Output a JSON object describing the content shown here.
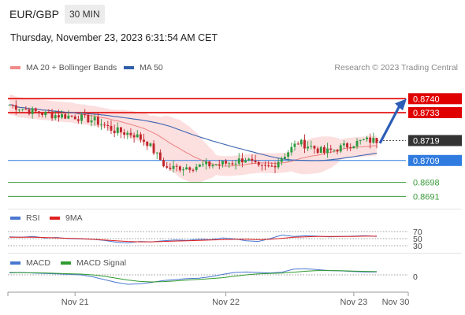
{
  "header": {
    "pair": "EUR/GBP",
    "timeframe": "30 MIN"
  },
  "timestamp": "Thursday, November 23, 2023 6:31:54 AM CET",
  "legends": {
    "price": [
      {
        "label": "MA 20 + Bollinger Bands",
        "color": "#f08a8a"
      },
      {
        "label": "MA 50",
        "color": "#2f5fa8"
      }
    ],
    "rsi": [
      {
        "label": "RSI",
        "color": "#4a78d0"
      },
      {
        "label": "9MA",
        "color": "#e02020"
      }
    ],
    "macd": [
      {
        "label": "MACD",
        "color": "#4a78d0"
      },
      {
        "label": "MACD Signal",
        "color": "#2e9a2e"
      }
    ]
  },
  "credit": "Research © 2023 Trading Central",
  "chart_data": [
    {
      "type": "candlestick",
      "panel": "price",
      "x_labels": [
        "Nov 21",
        "Nov 22",
        "Nov 23",
        "Nov 30"
      ],
      "ylim": [
        0.8686,
        0.875
      ],
      "close_points": [
        [
          0,
          0.8737
        ],
        [
          6,
          0.8734
        ],
        [
          12,
          0.8732
        ],
        [
          20,
          0.8731
        ],
        [
          26,
          0.8729
        ],
        [
          32,
          0.8724
        ],
        [
          38,
          0.8722
        ],
        [
          42,
          0.8718
        ],
        [
          48,
          0.8705
        ],
        [
          56,
          0.8706
        ],
        [
          62,
          0.8707
        ],
        [
          68,
          0.8708
        ],
        [
          72,
          0.871
        ],
        [
          76,
          0.8705
        ],
        [
          80,
          0.8706
        ],
        [
          84,
          0.8712
        ],
        [
          88,
          0.8718
        ],
        [
          92,
          0.8716
        ],
        [
          96,
          0.8713
        ],
        [
          100,
          0.8715
        ],
        [
          104,
          0.8717
        ],
        [
          108,
          0.8719
        ],
        [
          112,
          0.8719
        ]
      ],
      "levels": [
        {
          "value": 0.874,
          "label": "0.8740",
          "role": "resistance",
          "color": "#e00000"
        },
        {
          "value": 0.8733,
          "label": "0.8733",
          "role": "resistance",
          "color": "#e00000"
        },
        {
          "value": 0.8719,
          "label": "0.8719",
          "role": "last",
          "color": "#333333"
        },
        {
          "value": 0.8709,
          "label": "0.8709",
          "role": "pivot",
          "color": "#2f7be0"
        },
        {
          "value": 0.8698,
          "label": "0.8698",
          "role": "support",
          "color": "#3a9a3a"
        },
        {
          "value": 0.8691,
          "label": "0.8691",
          "role": "support",
          "color": "#3a9a3a"
        }
      ],
      "target": 0.874
    },
    {
      "type": "line",
      "panel": "rsi",
      "ylim": [
        30,
        70
      ],
      "ticks": [
        "70",
        "50",
        "30"
      ],
      "series": [
        {
          "name": "RSI",
          "values": [
            55,
            54,
            56,
            52,
            53,
            50,
            49,
            48,
            45,
            40,
            38,
            42,
            41,
            44,
            46,
            45,
            48,
            47,
            52,
            49,
            44,
            42,
            50,
            60,
            56,
            58,
            57,
            55,
            56,
            57,
            58,
            56
          ]
        },
        {
          "name": "9MA",
          "values": [
            54,
            54,
            54,
            53,
            52,
            51,
            50,
            48,
            46,
            44,
            42,
            41,
            41,
            42,
            43,
            44,
            45,
            46,
            47,
            48,
            48,
            47,
            48,
            51,
            54,
            55,
            56,
            56,
            56,
            56,
            57,
            57
          ]
        }
      ]
    },
    {
      "type": "line",
      "panel": "macd",
      "ticks": [
        "0"
      ],
      "series": [
        {
          "name": "MACD",
          "values": [
            0.2,
            0.25,
            0.18,
            0.15,
            0.1,
            0.05,
            0.0,
            -0.2,
            -0.5,
            -0.8,
            -1.0,
            -0.95,
            -0.8,
            -0.6,
            -0.5,
            -0.4,
            -0.35,
            -0.2,
            0.05,
            0.25,
            0.3,
            0.25,
            0.2,
            0.28,
            0.6,
            0.65,
            0.55,
            0.45,
            0.42,
            0.35,
            0.3,
            0.3
          ]
        },
        {
          "name": "MACD Signal",
          "values": [
            0.25,
            0.23,
            0.22,
            0.2,
            0.16,
            0.12,
            0.08,
            0.0,
            -0.15,
            -0.35,
            -0.55,
            -0.7,
            -0.75,
            -0.72,
            -0.65,
            -0.55,
            -0.48,
            -0.4,
            -0.3,
            -0.15,
            0.0,
            0.1,
            0.15,
            0.18,
            0.28,
            0.38,
            0.45,
            0.45,
            0.43,
            0.4,
            0.37,
            0.34
          ]
        }
      ]
    }
  ]
}
